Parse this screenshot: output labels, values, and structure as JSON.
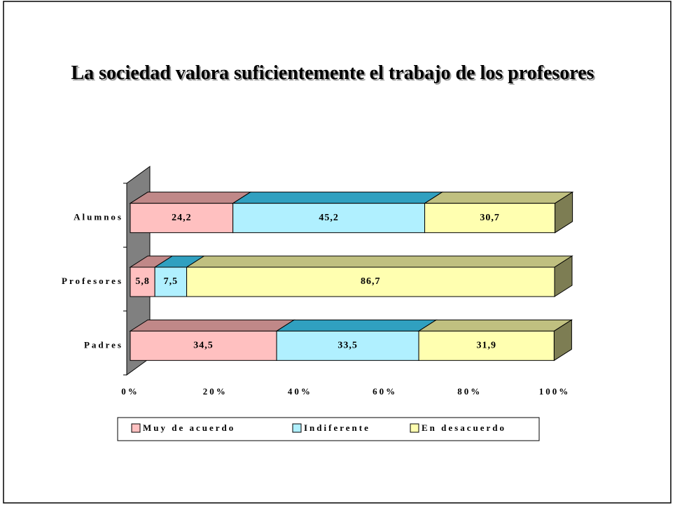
{
  "chart_data": {
    "type": "stacked_bar_3d",
    "title": "La sociedad valora suficientemente el trabajo de los profesores",
    "categories": [
      "Padres",
      "Profesores",
      "Alumnos"
    ],
    "series": [
      {
        "name": "Muy de acuerdo",
        "color": "#ffc0c0",
        "top_color": "#c08888",
        "values": [
          34.5,
          5.8,
          24.2
        ],
        "value_labels": [
          "34,5",
          "5,8",
          "24,2"
        ]
      },
      {
        "name": "Indiferente",
        "color": "#b0f0ff",
        "top_color": "#30a0c0",
        "values": [
          33.5,
          7.5,
          45.2
        ],
        "value_labels": [
          "33,5",
          "7,5",
          "45,2"
        ]
      },
      {
        "name": "En desacuerdo",
        "color": "#ffffb0",
        "top_color": "#c0c080",
        "values": [
          31.9,
          86.7,
          30.7
        ],
        "value_labels": [
          "31,9",
          "86,7",
          "30,7"
        ]
      }
    ],
    "xlim": [
      0,
      100
    ],
    "xticks": [
      {
        "value": 0,
        "label": "0%"
      },
      {
        "value": 20,
        "label": "20%"
      },
      {
        "value": 40,
        "label": "40%"
      },
      {
        "value": 60,
        "label": "60%"
      },
      {
        "value": 80,
        "label": "80%"
      },
      {
        "value": 100,
        "label": "100%"
      }
    ],
    "legend": "bottom"
  }
}
